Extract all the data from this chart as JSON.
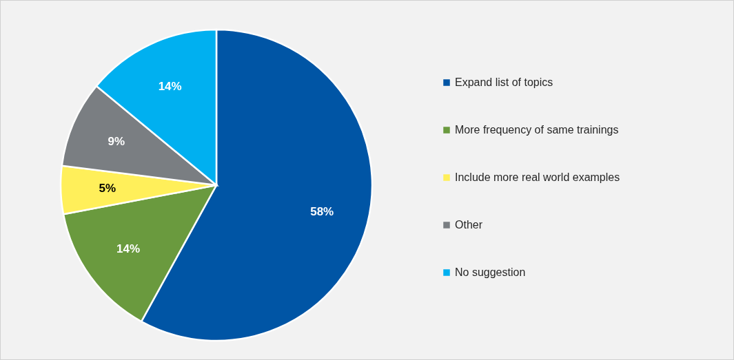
{
  "chart_data": {
    "type": "pie",
    "categories": [
      "Expand list of topics",
      "More frequency of same trainings",
      "Include more real world examples",
      "Other",
      "No suggestion"
    ],
    "values": [
      58,
      14,
      5,
      9,
      14
    ],
    "colors": [
      "#0055a5",
      "#6a9a3e",
      "#ffef5a",
      "#7a7e82",
      "#00b0f0"
    ],
    "value_labels": [
      "58%",
      "14%",
      "5%",
      "9%",
      "14%"
    ],
    "legend": "right"
  }
}
